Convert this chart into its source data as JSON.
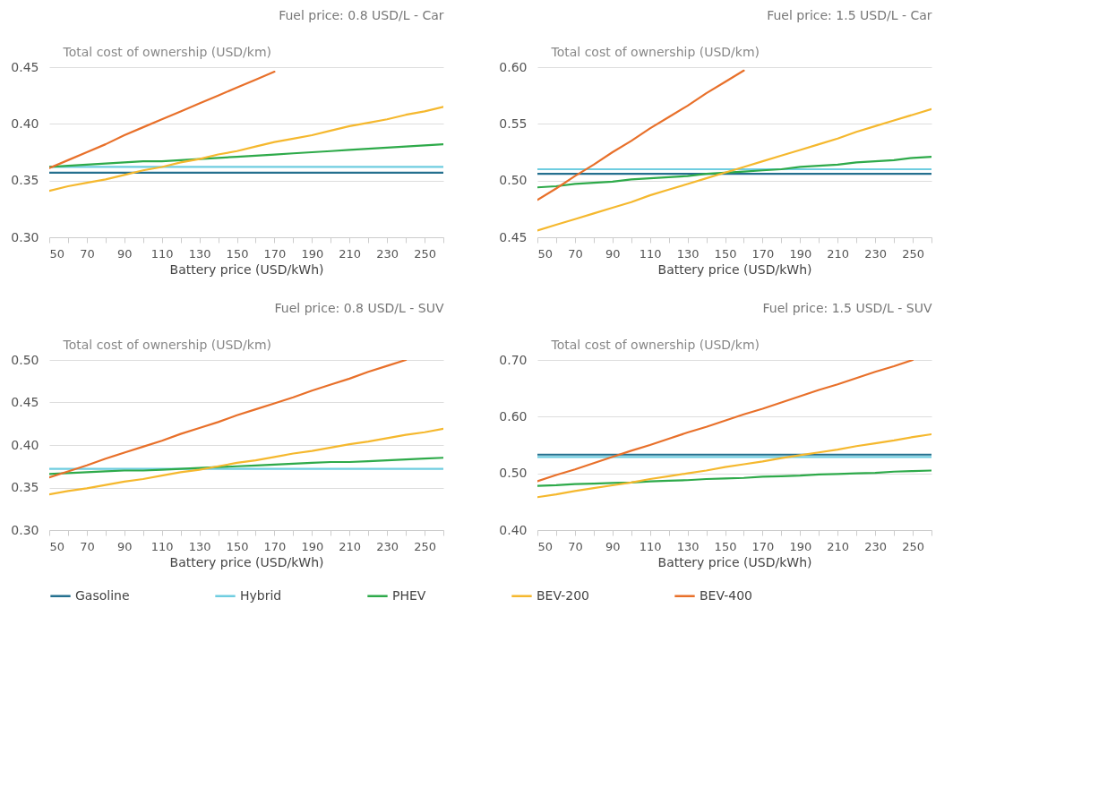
{
  "chart_data": [
    {
      "type": "line",
      "title": "Fuel price: 0.8 USD/L - Car",
      "xlabel": "Battery price (USD/kWh)",
      "ylabel": "Total cost of ownership (USD/km)",
      "legend": "bottom",
      "grid": "y",
      "x": [
        50,
        60,
        70,
        80,
        90,
        100,
        110,
        120,
        130,
        140,
        150,
        160,
        170,
        180,
        190,
        200,
        210,
        220,
        230,
        240,
        250,
        260
      ],
      "xlim": [
        50,
        260
      ],
      "xticks": [
        50,
        {
          "value": 60,
          "label": null
        },
        70,
        {
          "value": 80,
          "label": null
        },
        90,
        {
          "value": 100,
          "label": null
        },
        110,
        {
          "value": 120,
          "label": null
        },
        130,
        {
          "value": 140,
          "label": null
        },
        150,
        {
          "value": 160,
          "label": null
        },
        170,
        {
          "value": 180,
          "label": null
        },
        190,
        {
          "value": 200,
          "label": null
        },
        210,
        {
          "value": 220,
          "label": null
        },
        230,
        {
          "value": 240,
          "label": null
        },
        250,
        {
          "value": 260,
          "label": null
        }
      ],
      "ylim": [
        0.3,
        0.45
      ],
      "yticks": [
        {
          "value": 0.3,
          "label": "0.30"
        },
        0.35,
        {
          "value": 0.4,
          "label": "0.40"
        },
        0.45
      ],
      "series": [
        {
          "name": "Gasoline",
          "color": "#25708f",
          "values": [
            0.357,
            0.357,
            0.357,
            0.357,
            0.357,
            0.357,
            0.357,
            0.357,
            0.357,
            0.357,
            0.357,
            0.357,
            0.357,
            0.357,
            0.357,
            0.357,
            0.357,
            0.357,
            0.357,
            0.357,
            0.357,
            0.357
          ]
        },
        {
          "name": "Hybrid",
          "color": "#6fcde0",
          "values": [
            0.362,
            0.362,
            0.362,
            0.362,
            0.362,
            0.362,
            0.362,
            0.362,
            0.362,
            0.362,
            0.362,
            0.362,
            0.362,
            0.362,
            0.362,
            0.362,
            0.362,
            0.362,
            0.362,
            0.362,
            0.362,
            0.362
          ]
        },
        {
          "name": "PHEV",
          "color": "#2eaa4a",
          "values": [
            0.362,
            0.363,
            0.364,
            0.365,
            0.366,
            0.367,
            0.367,
            0.368,
            0.369,
            0.37,
            0.371,
            0.372,
            0.373,
            0.374,
            0.375,
            0.376,
            0.377,
            0.378,
            0.379,
            0.38,
            0.381,
            0.382
          ]
        },
        {
          "name": "BEV-200",
          "color": "#f5b82e",
          "values": [
            0.341,
            0.345,
            0.348,
            0.351,
            0.355,
            0.359,
            0.362,
            0.366,
            0.369,
            0.373,
            0.376,
            0.38,
            0.384,
            0.387,
            0.39,
            0.394,
            0.398,
            0.401,
            0.404,
            0.408,
            0.411,
            0.415
          ]
        },
        {
          "name": "BEV-400",
          "color": "#e8702a",
          "values": [
            0.361,
            0.368,
            0.375,
            0.382,
            0.39,
            0.397,
            0.404,
            0.411,
            0.418,
            0.425,
            0.432,
            0.439,
            0.446,
            null,
            null,
            null,
            null,
            null,
            null,
            null,
            null,
            null
          ]
        }
      ]
    },
    {
      "type": "line",
      "title": "Fuel price: 1.5 USD/L - Car",
      "xlabel": "Battery price (USD/kWh)",
      "ylabel": "Total cost of ownership (USD/km)",
      "legend": "bottom",
      "grid": "y",
      "x": [
        50,
        60,
        70,
        80,
        90,
        100,
        110,
        120,
        130,
        140,
        150,
        160,
        170,
        180,
        190,
        200,
        210,
        220,
        230,
        240,
        250,
        260
      ],
      "xlim": [
        50,
        260
      ],
      "xticks": [
        50,
        {
          "value": 60,
          "label": null
        },
        70,
        {
          "value": 80,
          "label": null
        },
        90,
        {
          "value": 100,
          "label": null
        },
        110,
        {
          "value": 120,
          "label": null
        },
        130,
        {
          "value": 140,
          "label": null
        },
        150,
        {
          "value": 160,
          "label": null
        },
        170,
        {
          "value": 180,
          "label": null
        },
        190,
        {
          "value": 200,
          "label": null
        },
        210,
        {
          "value": 220,
          "label": null
        },
        230,
        {
          "value": 240,
          "label": null
        },
        250,
        {
          "value": 260,
          "label": null
        }
      ],
      "ylim": [
        0.45,
        0.6
      ],
      "yticks": [
        0.45,
        {
          "value": 0.5,
          "label": "0.50"
        },
        0.55,
        {
          "value": 0.6,
          "label": "0.60"
        }
      ],
      "series": [
        {
          "name": "Gasoline",
          "color": "#25708f",
          "values": [
            0.506,
            0.506,
            0.506,
            0.506,
            0.506,
            0.506,
            0.506,
            0.506,
            0.506,
            0.506,
            0.506,
            0.506,
            0.506,
            0.506,
            0.506,
            0.506,
            0.506,
            0.506,
            0.506,
            0.506,
            0.506,
            0.506
          ]
        },
        {
          "name": "Hybrid",
          "color": "#6fcde0",
          "values": [
            0.51,
            0.51,
            0.51,
            0.51,
            0.51,
            0.51,
            0.51,
            0.51,
            0.51,
            0.51,
            0.51,
            0.51,
            0.51,
            0.51,
            0.51,
            0.51,
            0.51,
            0.51,
            0.51,
            0.51,
            0.51,
            0.51
          ]
        },
        {
          "name": "PHEV",
          "color": "#2eaa4a",
          "values": [
            0.494,
            0.495,
            0.497,
            0.498,
            0.499,
            0.501,
            0.502,
            0.503,
            0.504,
            0.506,
            0.507,
            0.508,
            0.509,
            0.51,
            0.512,
            0.513,
            0.514,
            0.516,
            0.517,
            0.518,
            0.52,
            0.521
          ]
        },
        {
          "name": "BEV-200",
          "color": "#f5b82e",
          "values": [
            0.456,
            0.461,
            0.466,
            0.471,
            0.476,
            0.481,
            0.487,
            0.492,
            0.497,
            0.502,
            0.507,
            0.512,
            0.517,
            0.522,
            0.527,
            0.532,
            0.537,
            0.543,
            0.548,
            0.553,
            0.558,
            0.563
          ]
        },
        {
          "name": "BEV-400",
          "color": "#e8702a",
          "values": [
            0.483,
            0.493,
            0.504,
            0.514,
            0.525,
            0.535,
            0.546,
            0.556,
            0.566,
            0.577,
            0.587,
            0.597,
            null,
            null,
            null,
            null,
            null,
            null,
            null,
            null,
            null,
            null
          ]
        }
      ]
    },
    {
      "type": "line",
      "title": "Fuel price: 0.8 USD/L - SUV",
      "xlabel": "Battery price (USD/kWh)",
      "ylabel": "Total cost of ownership (USD/km)",
      "legend": "bottom",
      "grid": "y",
      "x": [
        50,
        60,
        70,
        80,
        90,
        100,
        110,
        120,
        130,
        140,
        150,
        160,
        170,
        180,
        190,
        200,
        210,
        220,
        230,
        240,
        250,
        260
      ],
      "xlim": [
        50,
        260
      ],
      "xticks": [
        50,
        {
          "value": 60,
          "label": null
        },
        70,
        {
          "value": 80,
          "label": null
        },
        90,
        {
          "value": 100,
          "label": null
        },
        110,
        {
          "value": 120,
          "label": null
        },
        130,
        {
          "value": 140,
          "label": null
        },
        150,
        {
          "value": 160,
          "label": null
        },
        170,
        {
          "value": 180,
          "label": null
        },
        190,
        {
          "value": 200,
          "label": null
        },
        210,
        {
          "value": 220,
          "label": null
        },
        230,
        {
          "value": 240,
          "label": null
        },
        250,
        {
          "value": 260,
          "label": null
        }
      ],
      "ylim": [
        0.3,
        0.5
      ],
      "yticks": [
        {
          "value": 0.3,
          "label": "0.30"
        },
        0.35,
        {
          "value": 0.4,
          "label": "0.40"
        },
        0.45,
        {
          "value": 0.5,
          "label": "0.50"
        }
      ],
      "series": [
        {
          "name": "Gasoline",
          "color": "#25708f",
          "values": [
            null,
            null,
            null,
            null,
            null,
            null,
            null,
            null,
            null,
            null,
            null,
            null,
            null,
            null,
            null,
            null,
            null,
            null,
            null,
            null,
            null,
            null
          ]
        },
        {
          "name": "Hybrid",
          "color": "#6fcde0",
          "values": [
            0.372,
            0.372,
            0.372,
            0.372,
            0.372,
            0.372,
            0.372,
            0.372,
            0.372,
            0.372,
            0.372,
            0.372,
            0.372,
            0.372,
            0.372,
            0.372,
            0.372,
            0.372,
            0.372,
            0.372,
            0.372,
            0.372
          ]
        },
        {
          "name": "PHEV",
          "color": "#2eaa4a",
          "values": [
            0.366,
            0.367,
            0.368,
            0.369,
            0.37,
            0.37,
            0.371,
            0.372,
            0.373,
            0.374,
            0.375,
            0.376,
            0.377,
            0.378,
            0.379,
            0.38,
            0.38,
            0.381,
            0.382,
            0.383,
            0.384,
            0.385
          ]
        },
        {
          "name": "BEV-200",
          "color": "#f5b82e",
          "values": [
            0.342,
            0.346,
            0.349,
            0.353,
            0.357,
            0.36,
            0.364,
            0.368,
            0.371,
            0.375,
            0.379,
            0.382,
            0.386,
            0.39,
            0.393,
            0.397,
            0.401,
            0.404,
            0.408,
            0.412,
            0.415,
            0.419
          ]
        },
        {
          "name": "BEV-400",
          "color": "#e8702a",
          "values": [
            0.362,
            0.369,
            0.376,
            0.384,
            0.391,
            0.398,
            0.405,
            0.413,
            0.42,
            0.427,
            0.435,
            0.442,
            0.449,
            0.456,
            0.464,
            0.471,
            0.478,
            0.486,
            0.493,
            0.5,
            null,
            null
          ]
        }
      ]
    },
    {
      "type": "line",
      "title": "Fuel price: 1.5 USD/L - SUV",
      "xlabel": "Battery price (USD/kWh)",
      "ylabel": "Total cost of ownership (USD/km)",
      "legend": "bottom",
      "grid": "y",
      "x": [
        50,
        60,
        70,
        80,
        90,
        100,
        110,
        120,
        130,
        140,
        150,
        160,
        170,
        180,
        190,
        200,
        210,
        220,
        230,
        240,
        250,
        260
      ],
      "xlim": [
        50,
        260
      ],
      "xticks": [
        50,
        {
          "value": 60,
          "label": null
        },
        70,
        {
          "value": 80,
          "label": null
        },
        90,
        {
          "value": 100,
          "label": null
        },
        110,
        {
          "value": 120,
          "label": null
        },
        130,
        {
          "value": 140,
          "label": null
        },
        150,
        {
          "value": 160,
          "label": null
        },
        170,
        {
          "value": 180,
          "label": null
        },
        190,
        {
          "value": 200,
          "label": null
        },
        210,
        {
          "value": 220,
          "label": null
        },
        230,
        {
          "value": 240,
          "label": null
        },
        250,
        {
          "value": 260,
          "label": null
        }
      ],
      "ylim": [
        0.4,
        0.7
      ],
      "yticks": [
        {
          "value": 0.4,
          "label": "0.40"
        },
        {
          "value": 0.5,
          "label": "0.50"
        },
        {
          "value": 0.6,
          "label": "0.60"
        },
        {
          "value": 0.7,
          "label": "0.70"
        }
      ],
      "series": [
        {
          "name": "Gasoline",
          "color": "#25708f",
          "values": [
            0.533,
            0.533,
            0.533,
            0.533,
            0.533,
            0.533,
            0.533,
            0.533,
            0.533,
            0.533,
            0.533,
            0.533,
            0.533,
            0.533,
            0.533,
            0.533,
            0.533,
            0.533,
            0.533,
            0.533,
            0.533,
            0.533
          ]
        },
        {
          "name": "Hybrid",
          "color": "#6fcde0",
          "values": [
            0.529,
            0.529,
            0.529,
            0.529,
            0.529,
            0.529,
            0.529,
            0.529,
            0.529,
            0.529,
            0.529,
            0.529,
            0.529,
            0.529,
            0.529,
            0.529,
            0.529,
            0.529,
            0.529,
            0.529,
            0.529,
            0.529
          ]
        },
        {
          "name": "PHEV",
          "color": "#2eaa4a",
          "values": [
            0.478,
            0.479,
            0.481,
            0.482,
            0.483,
            0.484,
            0.486,
            0.487,
            0.488,
            0.49,
            0.491,
            0.492,
            0.494,
            0.495,
            0.496,
            0.498,
            0.499,
            0.5,
            0.501,
            0.503,
            0.504,
            0.505
          ]
        },
        {
          "name": "BEV-200",
          "color": "#f5b82e",
          "values": [
            0.458,
            0.463,
            0.469,
            0.474,
            0.479,
            0.484,
            0.49,
            0.495,
            0.5,
            0.505,
            0.511,
            0.516,
            0.521,
            0.527,
            0.532,
            0.537,
            0.542,
            0.548,
            0.553,
            0.558,
            0.564,
            0.569
          ]
        },
        {
          "name": "BEV-400",
          "color": "#e8702a",
          "values": [
            0.486,
            0.497,
            0.507,
            0.518,
            0.529,
            0.54,
            0.55,
            0.561,
            0.572,
            0.582,
            0.593,
            0.604,
            0.614,
            0.625,
            0.636,
            0.647,
            0.657,
            0.668,
            0.679,
            0.689,
            0.7,
            null
          ]
        }
      ]
    }
  ]
}
